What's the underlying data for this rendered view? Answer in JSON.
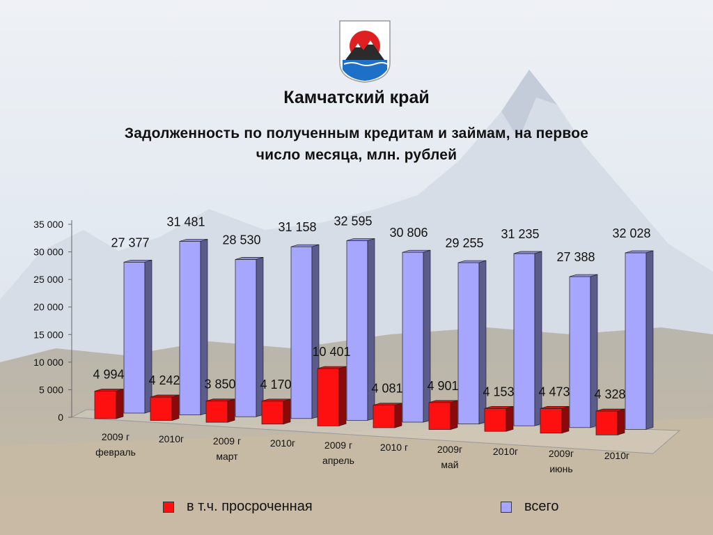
{
  "header": {
    "region": "Камчатский край",
    "title_line1": "Задолженность по полученным кредитам и займам, на первое",
    "title_line2": "число месяца, млн. рублей"
  },
  "colors": {
    "overdue": "#ff1010",
    "total": "#a6a6ff"
  },
  "chart_data": {
    "type": "bar",
    "title": "Задолженность по полученным кредитам и займам, на первое число месяца, млн. рублей",
    "ylim": [
      0,
      35000
    ],
    "yticks": [
      "0",
      "5 000",
      "10 000",
      "15 000",
      "20 000",
      "25 000",
      "30 000",
      "35 000"
    ],
    "categories": [
      "2009 г февраль",
      "2010г",
      "2009 г март",
      "2010г",
      "2009 г апрель",
      "2010 г",
      "2009г май",
      "2010г",
      "2009г июнь",
      "2010г"
    ],
    "category_labels": [
      [
        "2009 г",
        "февраль"
      ],
      [
        "2010г"
      ],
      [
        "2009 г",
        "март"
      ],
      [
        "2010г"
      ],
      [
        "2009 г",
        "апрель"
      ],
      [
        "2010 г"
      ],
      [
        "2009г",
        "май"
      ],
      [
        "2010г"
      ],
      [
        "2009г",
        "июнь"
      ],
      [
        "2010г"
      ]
    ],
    "series": [
      {
        "name": "в т.ч. просроченная",
        "values": [
          4994,
          4242,
          3850,
          4170,
          10401,
          4081,
          4901,
          4153,
          4473,
          4328
        ],
        "labels": [
          "4 994",
          "4 242",
          "3 850",
          "4 170",
          "10 401",
          "4 081",
          "4 901",
          "4 153",
          "4 473",
          "4 328"
        ]
      },
      {
        "name": "всего",
        "values": [
          27377,
          31481,
          28530,
          31158,
          32595,
          30806,
          29255,
          31235,
          27388,
          32028
        ],
        "labels": [
          "27 377",
          "31 481",
          "28 530",
          "31 158",
          "32 595",
          "30 806",
          "29 255",
          "31 235",
          "27 388",
          "32 028"
        ]
      }
    ],
    "legend": "bottom",
    "grid": false
  }
}
